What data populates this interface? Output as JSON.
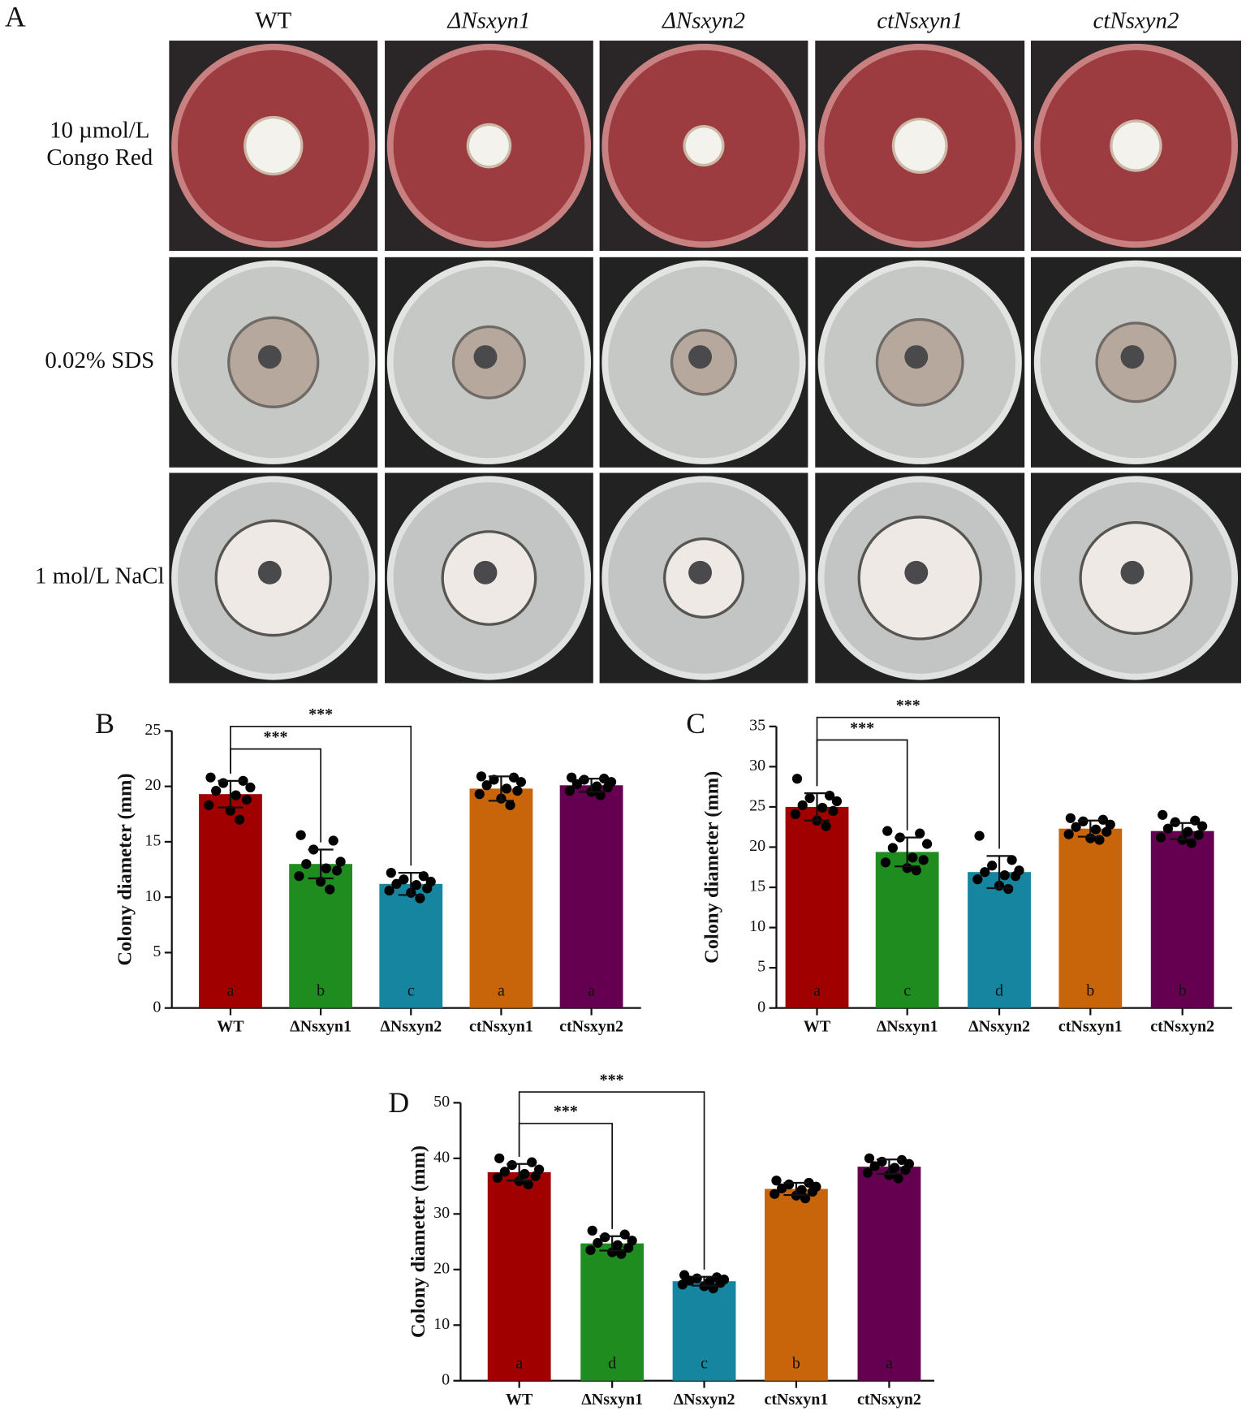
{
  "panel_a": {
    "label": "A",
    "columns": [
      "WT",
      "ΔNsxyn1",
      "ΔNsxyn2",
      "ctNsxyn1",
      "ctNsxyn2"
    ],
    "rows": [
      [
        "10 µmol/L",
        "Congo Red"
      ],
      [
        "0.02% SDS"
      ],
      [
        "1 mol/L NaCl"
      ]
    ]
  },
  "chart_data": [
    {
      "type": "bar",
      "panel": "B",
      "ylabel": "Colony diameter (mm)",
      "categories": [
        "WT",
        "ΔNsxyn1",
        "ΔNsxyn2",
        "ctNsxyn1",
        "ctNsxyn2"
      ],
      "colors": [
        "#a00000",
        "#1e8c1e",
        "#1585a0",
        "#c8650a",
        "#650050"
      ],
      "values": [
        19.3,
        13.0,
        11.2,
        19.8,
        20.1
      ],
      "errors": [
        1.2,
        1.3,
        1.0,
        1.1,
        0.6
      ],
      "points": [
        [
          20.8,
          20.5,
          20.3,
          19.9,
          19.6,
          19.2,
          18.8,
          18.3,
          17.8,
          17.0
        ],
        [
          15.6,
          15.1,
          14.3,
          13.2,
          13.0,
          12.6,
          12.4,
          11.9,
          11.4,
          10.7
        ],
        [
          12.2,
          11.9,
          11.6,
          11.4,
          11.2,
          11.1,
          10.8,
          10.6,
          10.4,
          9.9
        ],
        [
          20.9,
          20.8,
          20.6,
          20.4,
          20.1,
          19.8,
          19.6,
          19.3,
          18.9,
          18.3
        ],
        [
          20.8,
          20.7,
          20.6,
          20.4,
          20.2,
          20.0,
          19.9,
          19.6,
          19.5,
          19.2
        ]
      ],
      "letters": [
        "a",
        "b",
        "c",
        "a",
        "a"
      ],
      "significance": [
        {
          "groups": [
            "WT",
            "ΔNsxyn1"
          ],
          "label": "***"
        },
        {
          "groups": [
            "WT",
            "ΔNsxyn2"
          ],
          "label": "***"
        }
      ],
      "ylim": [
        0,
        25
      ],
      "yticks": [
        0,
        5,
        10,
        15,
        20,
        25
      ]
    },
    {
      "type": "bar",
      "panel": "C",
      "ylabel": "Colony diameter (mm)",
      "categories": [
        "WT",
        "ΔNsxyn1",
        "ΔNsxyn2",
        "ctNsxyn1",
        "ctNsxyn2"
      ],
      "colors": [
        "#a00000",
        "#1e8c1e",
        "#1585a0",
        "#c8650a",
        "#650050"
      ],
      "values": [
        25.0,
        19.4,
        16.9,
        22.3,
        22.0
      ],
      "errors": [
        1.7,
        1.8,
        2.0,
        1.0,
        1.0
      ],
      "points": [
        [
          28.5,
          26.4,
          26.1,
          25.7,
          25.2,
          24.9,
          24.5,
          24.1,
          23.3,
          22.6
        ],
        [
          22.0,
          21.7,
          21.2,
          20.4,
          19.9,
          18.7,
          18.4,
          18.1,
          17.4,
          17.1
        ],
        [
          21.4,
          18.4,
          17.7,
          17.1,
          16.9,
          16.5,
          16.4,
          16.0,
          15.2,
          14.8
        ],
        [
          23.6,
          23.4,
          23.2,
          22.8,
          22.5,
          22.2,
          21.9,
          21.6,
          21.1,
          20.9
        ],
        [
          24.0,
          23.3,
          23.1,
          22.6,
          22.3,
          21.9,
          21.5,
          21.2,
          20.9,
          20.5
        ]
      ],
      "letters": [
        "a",
        "c",
        "d",
        "b",
        "b"
      ],
      "significance": [
        {
          "groups": [
            "WT",
            "ΔNsxyn1"
          ],
          "label": "***"
        },
        {
          "groups": [
            "WT",
            "ΔNsxyn2"
          ],
          "label": "***"
        }
      ],
      "ylim": [
        0,
        35
      ],
      "yticks": [
        0,
        5,
        10,
        15,
        20,
        25,
        30,
        35
      ]
    },
    {
      "type": "bar",
      "panel": "D",
      "ylabel": "Colony diameter (mm)",
      "categories": [
        "WT",
        "ΔNsxyn1",
        "ΔNsxyn2",
        "ctNsxyn1",
        "ctNsxyn2"
      ],
      "colors": [
        "#a00000",
        "#1e8c1e",
        "#1585a0",
        "#c8650a",
        "#650050"
      ],
      "values": [
        37.5,
        24.7,
        17.9,
        34.5,
        38.5
      ],
      "errors": [
        1.5,
        1.3,
        0.8,
        1.1,
        1.3
      ],
      "points": [
        [
          40.0,
          39.3,
          38.8,
          38.0,
          37.6,
          37.2,
          36.8,
          36.5,
          35.9,
          35.3
        ],
        [
          27.0,
          26.3,
          25.8,
          25.2,
          24.8,
          24.4,
          23.9,
          23.5,
          23.1,
          22.8
        ],
        [
          19.0,
          18.6,
          18.4,
          18.2,
          18.0,
          17.8,
          17.6,
          17.3,
          17.0,
          16.6
        ],
        [
          36.0,
          35.6,
          35.3,
          34.9,
          34.6,
          34.3,
          34.0,
          33.6,
          33.3,
          32.8
        ],
        [
          40.0,
          39.7,
          39.4,
          39.0,
          38.6,
          38.3,
          37.9,
          37.4,
          37.0,
          36.4
        ]
      ],
      "letters": [
        "a",
        "d",
        "c",
        "b",
        "a"
      ],
      "significance": [
        {
          "groups": [
            "WT",
            "ΔNsxyn1"
          ],
          "label": "***"
        },
        {
          "groups": [
            "WT",
            "ΔNsxyn2"
          ],
          "label": "***"
        }
      ],
      "ylim": [
        0,
        50
      ],
      "yticks": [
        0,
        10,
        20,
        30,
        40,
        50
      ]
    }
  ]
}
